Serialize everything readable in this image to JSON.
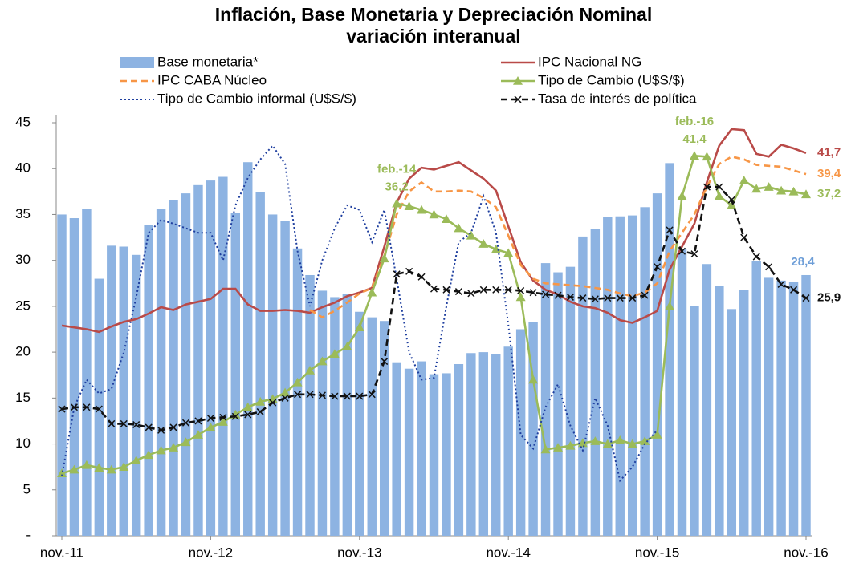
{
  "chart_data": {
    "type": "combo",
    "title": "Inflación, Base Monetaria y Depreciación Nominal",
    "subtitle": "variación interanual",
    "categories": [
      "nov.-11",
      null,
      null,
      null,
      null,
      null,
      null,
      null,
      null,
      null,
      null,
      null,
      "nov.-12",
      null,
      null,
      null,
      null,
      null,
      null,
      null,
      null,
      null,
      null,
      null,
      "nov.-13",
      null,
      null,
      null,
      null,
      null,
      null,
      null,
      null,
      null,
      null,
      null,
      "nov.-14",
      null,
      null,
      null,
      null,
      null,
      null,
      null,
      null,
      null,
      null,
      null,
      "nov.-15",
      null,
      null,
      null,
      null,
      null,
      null,
      null,
      null,
      null,
      null,
      null,
      "nov.-16"
    ],
    "ylim": [
      0,
      45
    ],
    "yticks": [
      {
        "value": 0,
        "label": "-"
      },
      5,
      10,
      15,
      20,
      25,
      30,
      35,
      40,
      45
    ],
    "grid": false,
    "legend": "top",
    "annotations": [
      "feb.-14",
      "feb.-16"
    ],
    "series": [
      {
        "name": "Base monetaria*",
        "kind": "bar",
        "color": "#8db3e2",
        "values": [
          35.0,
          34.6,
          35.6,
          28.0,
          31.6,
          31.5,
          30.6,
          33.9,
          35.6,
          36.6,
          37.3,
          38.2,
          38.7,
          39.1,
          35.2,
          40.7,
          37.4,
          35.0,
          34.3,
          31.3,
          28.4,
          26.7,
          26.0,
          26.3,
          24.4,
          23.8,
          23.4,
          18.9,
          18.2,
          19.0,
          17.6,
          17.7,
          18.7,
          19.9,
          20.0,
          19.8,
          20.6,
          22.5,
          23.3,
          29.7,
          28.7,
          29.3,
          32.6,
          33.4,
          34.7,
          34.8,
          34.9,
          35.8,
          37.3,
          40.6,
          31.2,
          25.0,
          29.6,
          27.2,
          24.7,
          26.8,
          29.9,
          28.1,
          27.8,
          27.7,
          28.4
        ],
        "value_labels": [
          null,
          null,
          null,
          null,
          null,
          null,
          null,
          null,
          null,
          null,
          null,
          null,
          null,
          null,
          null,
          null,
          null,
          null,
          null,
          null,
          null,
          null,
          null,
          null,
          null,
          null,
          null,
          null,
          null,
          null,
          null,
          null,
          null,
          null,
          null,
          null,
          null,
          null,
          null,
          null,
          null,
          null,
          null,
          null,
          null,
          null,
          null,
          null,
          null,
          null,
          null,
          null,
          null,
          null,
          null,
          null,
          null,
          null,
          null,
          null,
          "28,4"
        ],
        "label_color": "#6f9fd8"
      },
      {
        "name": "IPC Nacional NG",
        "kind": "line",
        "color": "#b94a48",
        "dash": "solid",
        "values": [
          22.9,
          22.7,
          22.5,
          22.2,
          22.8,
          23.3,
          23.6,
          24.2,
          24.9,
          24.6,
          25.2,
          25.5,
          25.8,
          26.9,
          26.9,
          25.2,
          24.5,
          24.5,
          24.6,
          24.5,
          24.3,
          24.9,
          25.4,
          26.1,
          26.5,
          27.0,
          31.5,
          36.3,
          38.9,
          40.1,
          39.9,
          40.3,
          40.7,
          39.8,
          38.9,
          37.6,
          33.7,
          29.8,
          27.8,
          26.8,
          26.3,
          25.5,
          25.0,
          24.8,
          24.3,
          23.5,
          23.2,
          23.8,
          24.5,
          29.0,
          31.5,
          34.0,
          38.5,
          42.5,
          44.3,
          44.2,
          41.6,
          41.3,
          42.6,
          42.2,
          41.7
        ],
        "value_labels": [
          null,
          null,
          null,
          null,
          null,
          null,
          null,
          null,
          null,
          null,
          null,
          null,
          null,
          null,
          null,
          null,
          null,
          null,
          null,
          null,
          null,
          null,
          null,
          null,
          null,
          null,
          null,
          null,
          null,
          null,
          null,
          null,
          null,
          null,
          null,
          null,
          null,
          null,
          null,
          null,
          null,
          null,
          null,
          null,
          null,
          null,
          null,
          null,
          null,
          null,
          null,
          null,
          null,
          null,
          null,
          null,
          null,
          null,
          null,
          null,
          "41,7"
        ]
      },
      {
        "name": "IPC CABA Núcleo",
        "kind": "line",
        "color": "#f79646",
        "dash": "dashed",
        "values": [
          null,
          null,
          null,
          null,
          null,
          null,
          null,
          null,
          null,
          null,
          null,
          null,
          null,
          null,
          null,
          null,
          null,
          null,
          null,
          null,
          24.6,
          23.8,
          24.5,
          25.4,
          26.4,
          27.0,
          30.5,
          35.0,
          37.5,
          38.5,
          37.5,
          37.5,
          37.6,
          37.5,
          36.8,
          35.8,
          32.7,
          29.5,
          28.0,
          27.5,
          27.4,
          27.3,
          27.2,
          27.0,
          26.8,
          26.4,
          26.1,
          26.5,
          27.5,
          31.0,
          33.0,
          35.0,
          38.0,
          40.5,
          41.3,
          41.0,
          40.4,
          40.3,
          40.2,
          39.8,
          39.4
        ],
        "value_labels": [
          null,
          null,
          null,
          null,
          null,
          null,
          null,
          null,
          null,
          null,
          null,
          null,
          null,
          null,
          null,
          null,
          null,
          null,
          null,
          null,
          null,
          null,
          null,
          null,
          null,
          null,
          null,
          null,
          null,
          null,
          null,
          null,
          null,
          null,
          null,
          null,
          null,
          null,
          null,
          null,
          null,
          null,
          null,
          null,
          null,
          null,
          null,
          null,
          null,
          null,
          null,
          null,
          null,
          null,
          null,
          null,
          null,
          null,
          null,
          null,
          "39,4"
        ]
      },
      {
        "name": "Tipo de Cambio (U$S/$)",
        "kind": "line",
        "color": "#9bbb59",
        "dash": "solid",
        "marker": "triangle",
        "values": [
          6.8,
          7.2,
          7.7,
          7.4,
          7.2,
          7.5,
          8.2,
          8.8,
          9.3,
          9.6,
          10.2,
          11.0,
          11.8,
          12.4,
          13.2,
          14.0,
          14.6,
          14.9,
          15.6,
          16.7,
          18.0,
          19.0,
          19.8,
          20.6,
          22.7,
          26.5,
          30.2,
          36.2,
          35.9,
          35.5,
          35.0,
          34.5,
          33.5,
          32.7,
          31.8,
          31.2,
          30.8,
          26.0,
          17.0,
          9.4,
          9.6,
          9.8,
          10.1,
          10.3,
          10.0,
          10.4,
          10.0,
          10.3,
          11.0,
          25.0,
          37.0,
          41.4,
          41.3,
          37.0,
          36.0,
          38.7,
          37.8,
          38.0,
          37.6,
          37.5,
          37.2
        ],
        "value_labels": [
          null,
          null,
          null,
          null,
          null,
          null,
          null,
          null,
          null,
          null,
          null,
          null,
          null,
          null,
          null,
          null,
          null,
          null,
          null,
          null,
          null,
          null,
          null,
          null,
          null,
          null,
          null,
          "36,2",
          null,
          null,
          null,
          null,
          null,
          null,
          null,
          null,
          null,
          null,
          null,
          null,
          null,
          null,
          null,
          null,
          null,
          null,
          null,
          null,
          null,
          null,
          null,
          "41,4",
          null,
          null,
          null,
          null,
          null,
          null,
          null,
          null,
          "37,2"
        ]
      },
      {
        "name": "Tipo de Cambio informal (U$S/$)",
        "kind": "line",
        "color": "#1f3f9f",
        "dash": "dotted",
        "values": [
          6.5,
          14.0,
          17.0,
          15.5,
          16.0,
          20.0,
          26.0,
          33.0,
          34.4,
          34.0,
          33.5,
          33.0,
          33.0,
          30.0,
          36.0,
          39.0,
          41.0,
          42.5,
          40.5,
          31.0,
          25.0,
          30.0,
          33.5,
          36.0,
          35.5,
          32.0,
          35.5,
          28.0,
          20.0,
          17.0,
          17.2,
          25.0,
          32.0,
          33.0,
          37.0,
          33.0,
          23.0,
          11.0,
          9.5,
          14.0,
          16.5,
          12.0,
          9.3,
          15.0,
          12.0,
          6.0,
          7.5,
          10.0,
          11.5,
          null,
          null,
          null,
          null,
          null,
          null,
          null,
          null,
          null,
          null,
          null,
          null
        ]
      },
      {
        "name": "Tasa de interés de política",
        "kind": "line",
        "color": "#111111",
        "dash": "dashed",
        "marker": "x",
        "values": [
          13.8,
          14.0,
          14.0,
          13.8,
          12.2,
          12.2,
          12.1,
          11.8,
          11.5,
          11.8,
          12.3,
          12.5,
          12.8,
          12.9,
          13.0,
          13.2,
          13.5,
          14.5,
          15.0,
          15.4,
          15.4,
          15.3,
          15.2,
          15.2,
          15.2,
          15.4,
          19.0,
          28.5,
          28.8,
          28.2,
          26.9,
          26.8,
          26.6,
          26.4,
          26.8,
          26.8,
          26.8,
          26.7,
          26.5,
          26.3,
          26.2,
          26.0,
          25.9,
          25.8,
          25.9,
          25.9,
          25.9,
          26.2,
          29.3,
          33.3,
          31.0,
          30.7,
          38.0,
          38.0,
          36.6,
          32.5,
          30.4,
          29.3,
          27.4,
          26.8,
          25.9
        ],
        "value_labels": [
          null,
          null,
          null,
          null,
          null,
          null,
          null,
          null,
          null,
          null,
          null,
          null,
          null,
          null,
          null,
          null,
          null,
          null,
          null,
          null,
          null,
          null,
          null,
          null,
          null,
          null,
          null,
          null,
          null,
          null,
          null,
          null,
          null,
          null,
          null,
          null,
          null,
          null,
          null,
          null,
          null,
          null,
          null,
          null,
          null,
          null,
          null,
          null,
          null,
          null,
          null,
          null,
          null,
          null,
          null,
          null,
          null,
          null,
          null,
          null,
          "25,9"
        ]
      }
    ]
  }
}
